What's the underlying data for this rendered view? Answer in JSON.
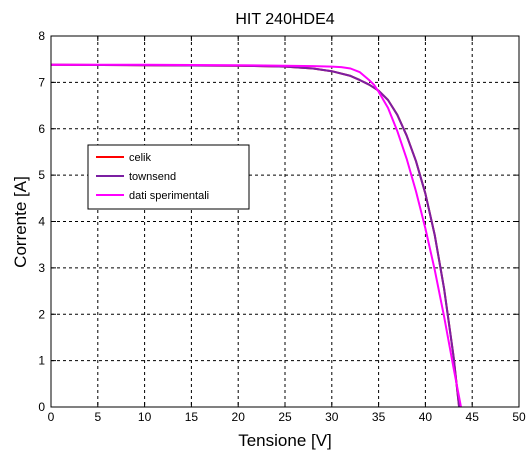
{
  "chart_data": {
    "type": "line",
    "title": "HIT 240HDE4",
    "xlabel": "Tensione [V]",
    "ylabel": "Corrente [A]",
    "xlim": [
      0,
      50
    ],
    "ylim": [
      0,
      8
    ],
    "xticks": [
      0,
      5,
      10,
      15,
      20,
      25,
      30,
      35,
      40,
      45,
      50
    ],
    "yticks": [
      0,
      1,
      2,
      3,
      4,
      5,
      6,
      7,
      8
    ],
    "grid": true,
    "legend_position": "center-left",
    "series": [
      {
        "name": "celik",
        "color": "#ff0000",
        "x": [
          0,
          10,
          20,
          25,
          28,
          30,
          32,
          33,
          34,
          35,
          36,
          37,
          38,
          39,
          40,
          41,
          42,
          43,
          43.6
        ],
        "y": [
          7.38,
          7.37,
          7.36,
          7.34,
          7.3,
          7.24,
          7.14,
          7.05,
          6.95,
          6.82,
          6.62,
          6.3,
          5.85,
          5.3,
          4.6,
          3.7,
          2.55,
          1.1,
          0
        ]
      },
      {
        "name": "townsend",
        "color": "#7b1fa2",
        "x": [
          0,
          10,
          20,
          25,
          28,
          30,
          32,
          33,
          34,
          35,
          36,
          37,
          38,
          39,
          40,
          41,
          42,
          43,
          43.6
        ],
        "y": [
          7.38,
          7.37,
          7.36,
          7.34,
          7.3,
          7.24,
          7.14,
          7.05,
          6.95,
          6.82,
          6.62,
          6.3,
          5.85,
          5.3,
          4.6,
          3.7,
          2.55,
          1.1,
          0
        ]
      },
      {
        "name": "dati sperimentali",
        "color": "#ff00ff",
        "x": [
          0,
          10,
          20,
          25,
          28,
          30,
          31,
          32,
          33,
          34,
          34.5,
          35,
          36,
          37,
          38,
          39,
          40,
          41,
          42,
          43,
          43.8
        ],
        "y": [
          7.38,
          7.38,
          7.37,
          7.36,
          7.35,
          7.34,
          7.33,
          7.3,
          7.22,
          7.05,
          6.95,
          6.8,
          6.45,
          5.95,
          5.35,
          4.65,
          3.85,
          2.95,
          1.95,
          0.85,
          0
        ]
      }
    ]
  }
}
